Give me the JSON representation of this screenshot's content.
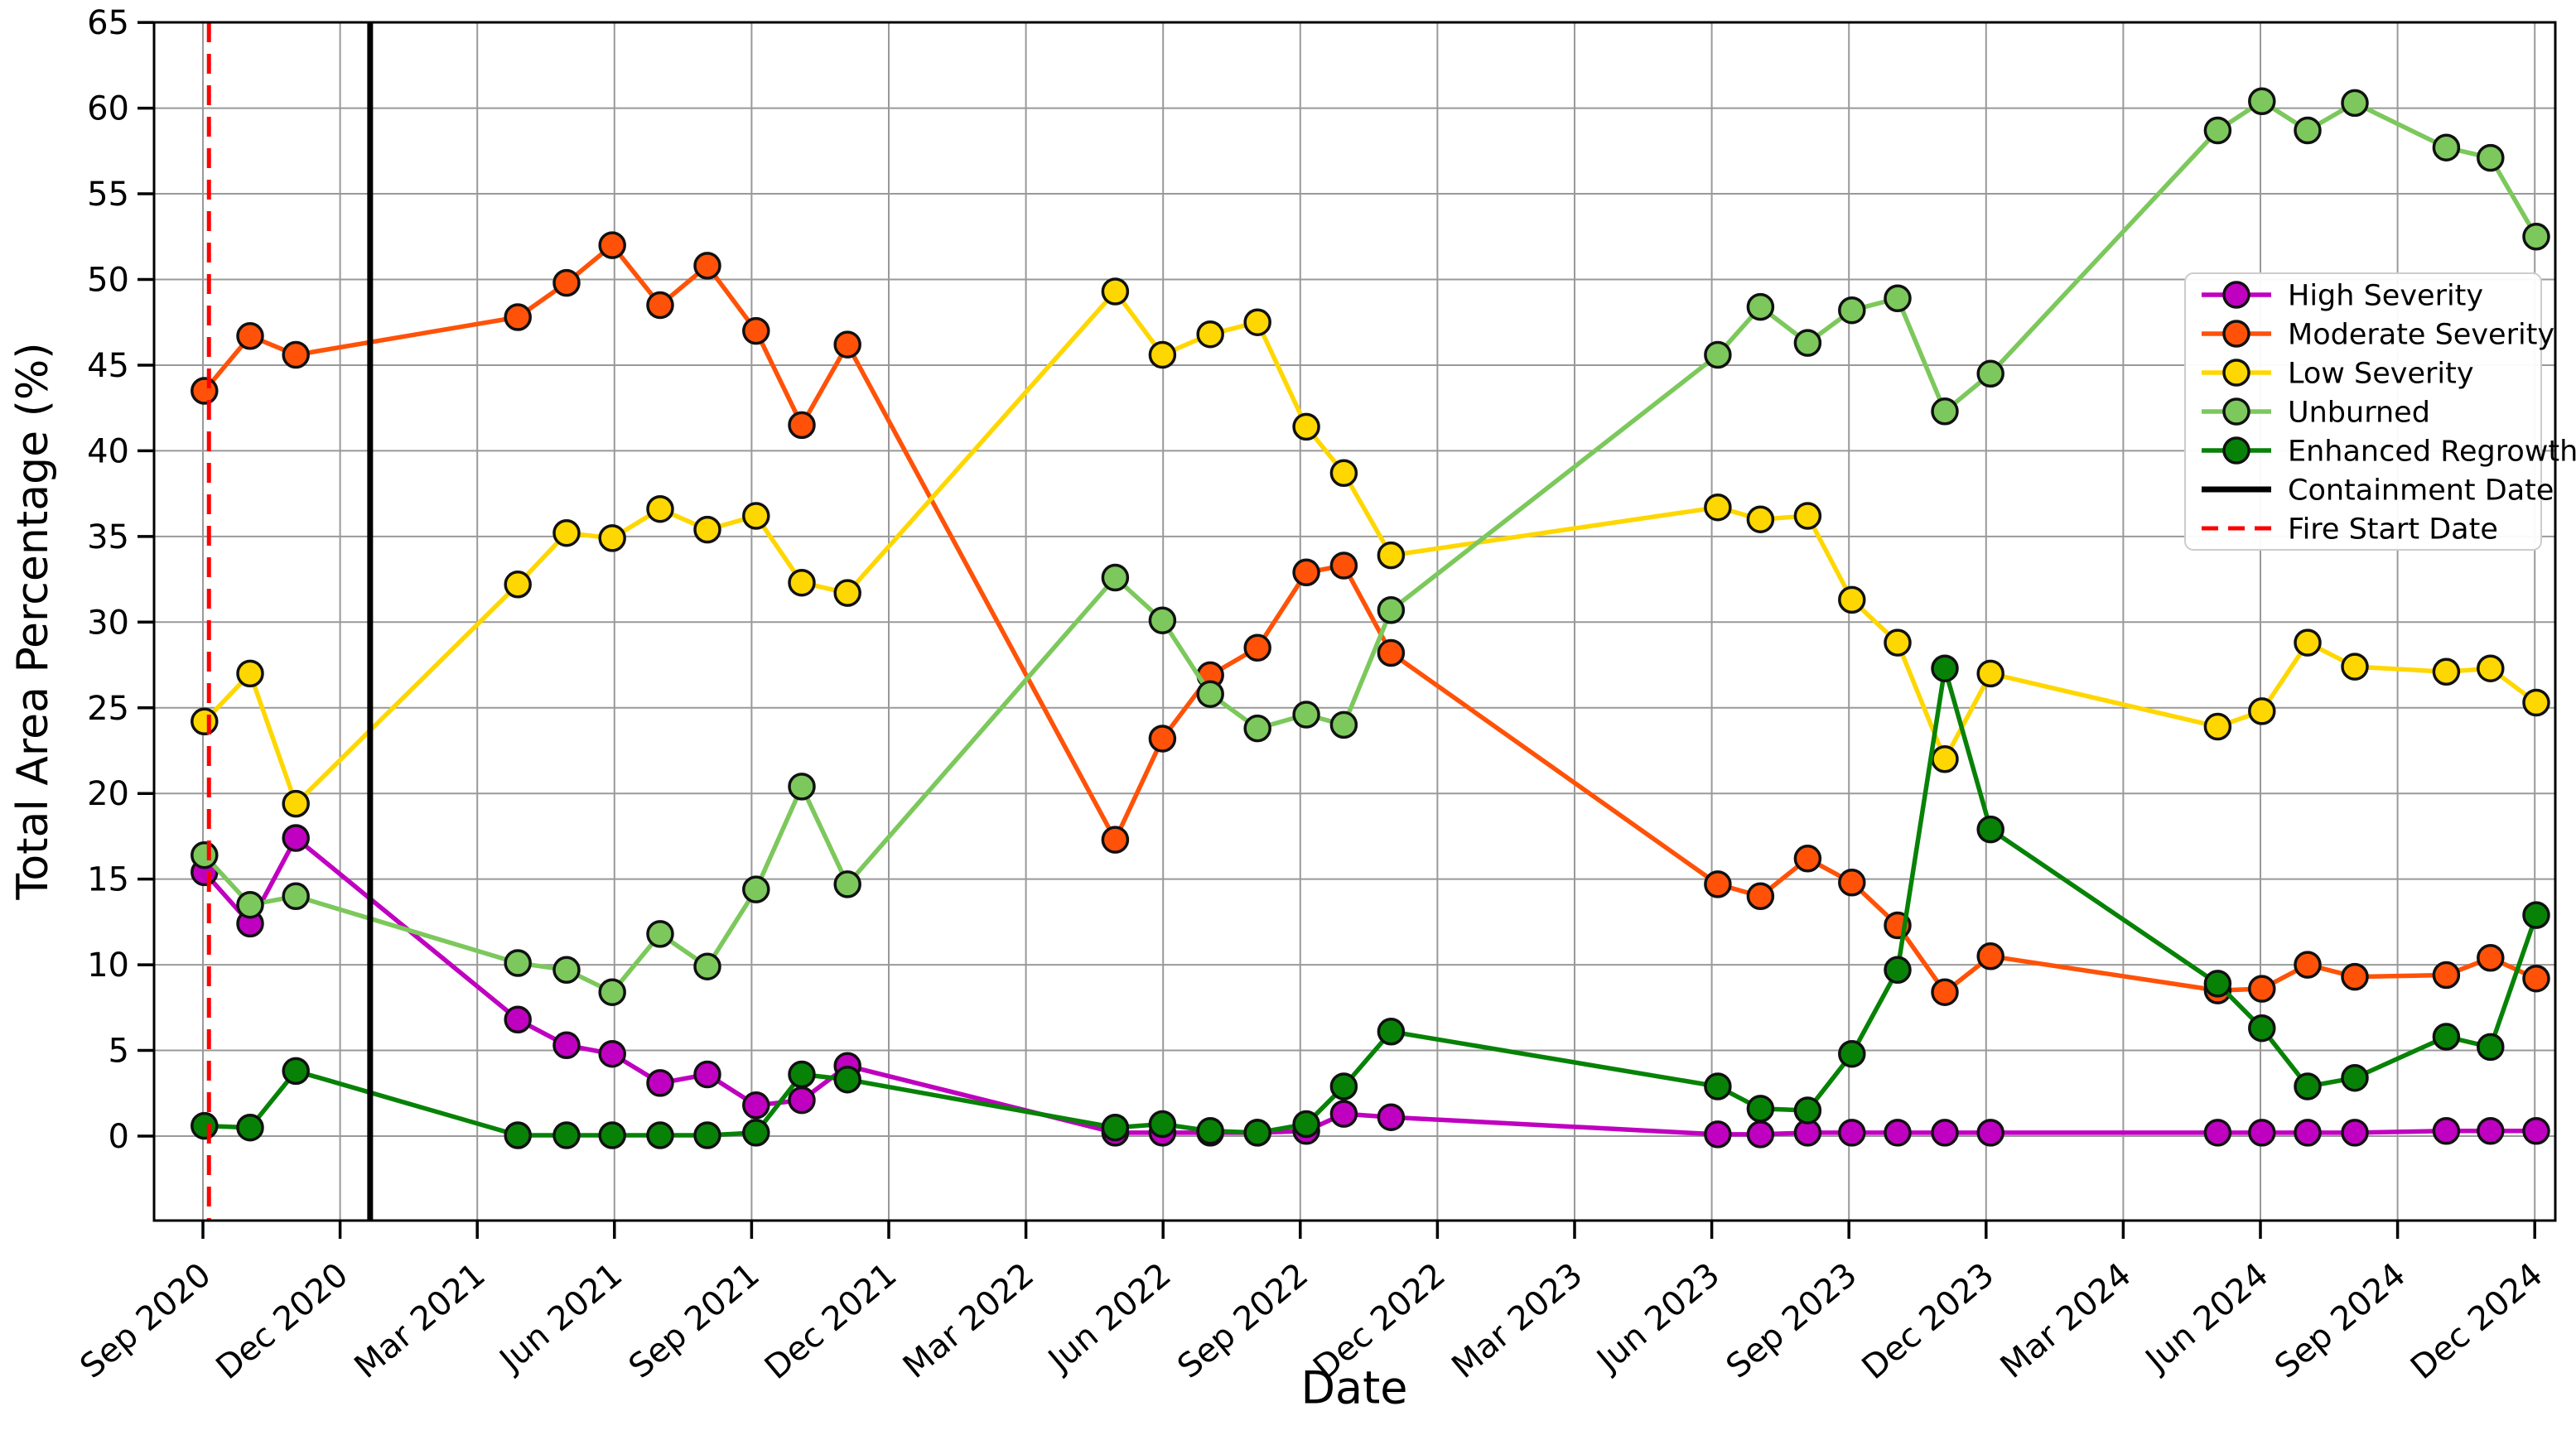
{
  "figure": {
    "xlabel": "Date",
    "ylabel": "Total Area Percentage (%)",
    "background": "#ffffff",
    "grid_color": "#999999",
    "spine_color": "#000000"
  },
  "chart_data": {
    "type": "line",
    "title": "",
    "xlabel": "Date",
    "ylabel": "Total Area Percentage (%)",
    "grid": true,
    "legend_position": "upper right",
    "ylim": [
      -4.9,
      65
    ],
    "yticks": [
      0,
      5,
      10,
      15,
      20,
      25,
      30,
      35,
      40,
      45,
      50,
      55,
      60,
      65
    ],
    "xticks": [
      "Sep 2020",
      "Dec 2020",
      "Mar 2021",
      "Jun 2021",
      "Sep 2021",
      "Dec 2021",
      "Mar 2022",
      "Jun 2022",
      "Sep 2022",
      "Dec 2022",
      "Mar 2023",
      "Jun 2023",
      "Sep 2023",
      "Dec 2023",
      "Mar 2024",
      "Jun 2024",
      "Sep 2024",
      "Dec 2024"
    ],
    "x": [
      "2020-09-02",
      "2020-10-02",
      "2020-11-02",
      "2021-03-28",
      "2021-04-30",
      "2021-05-30",
      "2021-07-01",
      "2021-08-02",
      "2021-09-04",
      "2021-10-04",
      "2021-11-04",
      "2022-04-30",
      "2022-05-31",
      "2022-07-02",
      "2022-08-03",
      "2022-09-05",
      "2022-09-30",
      "2022-10-31",
      "2023-06-05",
      "2023-07-03",
      "2023-08-04",
      "2023-09-03",
      "2023-10-03",
      "2023-11-04",
      "2023-12-04",
      "2024-05-03",
      "2024-06-02",
      "2024-07-02",
      "2024-08-03",
      "2024-10-03",
      "2024-11-02",
      "2024-12-02"
    ],
    "series": [
      {
        "name": "High Severity",
        "color": "#C000C0",
        "values": [
          15.4,
          12.4,
          17.4,
          6.8,
          5.3,
          4.8,
          3.1,
          3.6,
          1.8,
          2.1,
          4.1,
          0.2,
          0.2,
          0.2,
          0.2,
          0.3,
          1.3,
          1.1,
          0.1,
          0.1,
          0.2,
          0.2,
          0.2,
          0.2,
          0.2,
          0.2,
          0.2,
          0.2,
          0.2,
          0.3,
          0.3,
          0.3
        ]
      },
      {
        "name": "Moderate Severity",
        "color": "#FF5208",
        "values": [
          43.5,
          46.7,
          45.6,
          47.8,
          49.8,
          52.0,
          48.5,
          50.8,
          47.0,
          41.5,
          46.2,
          17.3,
          23.2,
          26.9,
          28.5,
          32.9,
          33.3,
          28.2,
          14.7,
          14.0,
          16.2,
          14.8,
          12.3,
          8.4,
          10.5,
          8.5,
          8.6,
          10.0,
          9.3,
          9.4,
          10.4,
          9.2
        ]
      },
      {
        "name": "Low Severity",
        "color": "#FFD700",
        "values": [
          24.2,
          27.0,
          19.4,
          32.2,
          35.2,
          34.9,
          36.6,
          35.4,
          36.2,
          32.3,
          31.7,
          49.3,
          45.6,
          46.8,
          47.5,
          41.4,
          38.7,
          33.9,
          36.7,
          36.0,
          36.2,
          31.3,
          28.8,
          22.0,
          27.0,
          23.9,
          24.8,
          28.8,
          27.4,
          27.1,
          27.3,
          25.3
        ]
      },
      {
        "name": "Unburned",
        "color": "#7CC85C",
        "values": [
          16.4,
          13.5,
          14.0,
          10.1,
          9.7,
          8.4,
          11.8,
          9.9,
          14.4,
          20.4,
          14.7,
          32.6,
          30.1,
          25.8,
          23.8,
          24.6,
          24.0,
          30.7,
          45.6,
          48.4,
          46.3,
          48.2,
          48.9,
          42.3,
          44.5,
          58.7,
          60.4,
          58.7,
          60.3,
          57.7,
          57.1,
          52.5
        ]
      },
      {
        "name": "Enhanced Regrowth",
        "color": "#078207",
        "values": [
          0.6,
          0.5,
          3.8,
          0.05,
          0.05,
          0.05,
          0.05,
          0.05,
          0.2,
          3.6,
          3.3,
          0.5,
          0.7,
          0.3,
          0.2,
          0.7,
          2.9,
          6.1,
          2.9,
          1.6,
          1.5,
          4.8,
          9.7,
          27.3,
          17.9,
          8.9,
          6.3,
          2.9,
          3.4,
          5.8,
          5.2,
          12.9
        ]
      }
    ],
    "events": [
      {
        "name": "Containment Date",
        "date": "2020-12-21",
        "color": "#000000",
        "style": "solid"
      },
      {
        "name": "Fire Start Date",
        "date": "2020-09-05",
        "color": "#FF0000",
        "style": "dashed"
      }
    ]
  }
}
